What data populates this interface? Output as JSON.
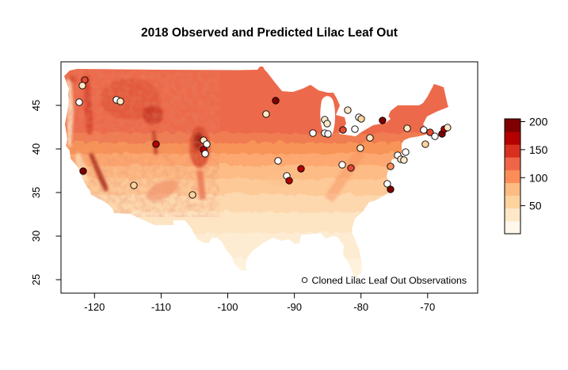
{
  "title": "2018 Observed and Predicted Lilac Leaf Out",
  "background": "#ffffff",
  "legend": {
    "label": "Cloned Lilac Leaf Out Observations"
  },
  "chart_data": {
    "type": "map",
    "subtype": "raster-choropleth-with-scatter",
    "title": "2018 Observed and Predicted Lilac Leaf Out",
    "region": "Continental United States",
    "xlabel": "",
    "ylabel": "",
    "x_axis": {
      "unit": "longitude",
      "ticks": [
        -120,
        -110,
        -100,
        -90,
        -80,
        -70
      ],
      "range": [
        -125.5,
        -62.5
      ]
    },
    "y_axis": {
      "unit": "latitude",
      "ticks": [
        45,
        40,
        35,
        30,
        25
      ],
      "range": [
        23.4,
        50.0
      ]
    },
    "grid": false,
    "legend_position": "bottom-right-inside",
    "colorbar": {
      "ticks": [
        200,
        150,
        100,
        50
      ],
      "vmin": 0,
      "vmax": 205,
      "colors_bottom_to_top": [
        "#fff7ec",
        "#fee8c8",
        "#fdd49e",
        "#fdbb84",
        "#fc8d59",
        "#ef6548",
        "#d7301f",
        "#b30000",
        "#7f0000"
      ]
    },
    "map_bands": [
      {
        "offset": 0.0,
        "color": "#ec6a4c"
      },
      {
        "offset": 0.285,
        "color": "#ec6a4c"
      },
      {
        "offset": 0.285,
        "color": "#f07b51"
      },
      {
        "offset": 0.326,
        "color": "#f07b51"
      },
      {
        "offset": 0.326,
        "color": "#f89459"
      },
      {
        "offset": 0.375,
        "color": "#f89459"
      },
      {
        "offset": 0.375,
        "color": "#fda870"
      },
      {
        "offset": 0.427,
        "color": "#fda870"
      },
      {
        "offset": 0.427,
        "color": "#fdbb85"
      },
      {
        "offset": 0.486,
        "color": "#fdbb85"
      },
      {
        "offset": 0.486,
        "color": "#fdc997"
      },
      {
        "offset": 0.556,
        "color": "#fdc997"
      },
      {
        "offset": 0.556,
        "color": "#fdd8ae"
      },
      {
        "offset": 0.632,
        "color": "#fdd8ae"
      },
      {
        "offset": 0.632,
        "color": "#fde4c2"
      },
      {
        "offset": 0.722,
        "color": "#fde4c2"
      },
      {
        "offset": 0.722,
        "color": "#fdecd2"
      },
      {
        "offset": 0.833,
        "color": "#fdecd2"
      },
      {
        "offset": 0.833,
        "color": "#fef2dd"
      },
      {
        "offset": 1.0,
        "color": "#fef2dd"
      }
    ],
    "points_note": "observation points as [longitude, latitude, fill_color]",
    "points": [
      [
        -121.46,
        47.91,
        "#e34a33"
      ],
      [
        -121.82,
        47.27,
        "#fee8c8"
      ],
      [
        -122.29,
        45.36,
        "#ffffff"
      ],
      [
        -116.71,
        45.64,
        "#ffffff"
      ],
      [
        -116.11,
        45.45,
        "#fee8c8"
      ],
      [
        -110.76,
        40.55,
        "#b30000"
      ],
      [
        -121.7,
        37.45,
        "#7f0000"
      ],
      [
        -114.09,
        35.82,
        "#fdd49e"
      ],
      [
        -105.29,
        34.73,
        "#fdd49e"
      ],
      [
        -103.63,
        41.0,
        "#fee8c8"
      ],
      [
        -103.15,
        40.55,
        "#ffffff"
      ],
      [
        -103.63,
        39.91,
        "#b30000"
      ],
      [
        -103.39,
        39.45,
        "#ffffff"
      ],
      [
        -94.24,
        44.0,
        "#fee8c8"
      ],
      [
        -92.81,
        45.55,
        "#7f0000"
      ],
      [
        -87.22,
        41.82,
        "#ffffff"
      ],
      [
        -85.44,
        43.36,
        "#fee8c8"
      ],
      [
        -85.08,
        42.91,
        "#fee8c8"
      ],
      [
        -81.99,
        44.45,
        "#fee8c8"
      ],
      [
        -80.32,
        43.64,
        "#ffffff"
      ],
      [
        -79.97,
        43.45,
        "#fdd49e"
      ],
      [
        -85.44,
        41.82,
        "#ffffff"
      ],
      [
        -84.96,
        41.73,
        "#ffffff"
      ],
      [
        -82.7,
        42.18,
        "#e34a33"
      ],
      [
        -80.92,
        42.27,
        "#ffffff"
      ],
      [
        -80.09,
        40.09,
        "#fee8c8"
      ],
      [
        -78.66,
        41.27,
        "#fee8c8"
      ],
      [
        -76.76,
        43.27,
        "#7f0000"
      ],
      [
        -73.07,
        42.36,
        "#fee8c8"
      ],
      [
        -70.58,
        42.18,
        "#ffffff"
      ],
      [
        -69.63,
        41.91,
        "#e34a33"
      ],
      [
        -68.91,
        41.45,
        "#ffffff"
      ],
      [
        -67.84,
        41.73,
        "#7f0000"
      ],
      [
        -67.49,
        42.27,
        "#b30000"
      ],
      [
        -67.01,
        42.45,
        "#fee8c8"
      ],
      [
        -70.34,
        40.55,
        "#fdd49e"
      ],
      [
        -73.31,
        39.64,
        "#ffffff"
      ],
      [
        -74.5,
        39.27,
        "#ffffff"
      ],
      [
        -74.02,
        38.82,
        "#fee8c8"
      ],
      [
        -73.55,
        38.73,
        "#fee8c8"
      ],
      [
        -75.57,
        38.0,
        "#fc8d59"
      ],
      [
        -82.82,
        38.18,
        "#ffffff"
      ],
      [
        -81.51,
        37.82,
        "#e34a33"
      ],
      [
        -92.45,
        38.64,
        "#ffffff"
      ],
      [
        -89.0,
        37.73,
        "#b30000"
      ],
      [
        -91.14,
        36.91,
        "#ffffff"
      ],
      [
        -90.78,
        36.36,
        "#b30000"
      ],
      [
        -76.05,
        36.0,
        "#ffffff"
      ],
      [
        -75.57,
        35.36,
        "#7f0000"
      ]
    ]
  }
}
